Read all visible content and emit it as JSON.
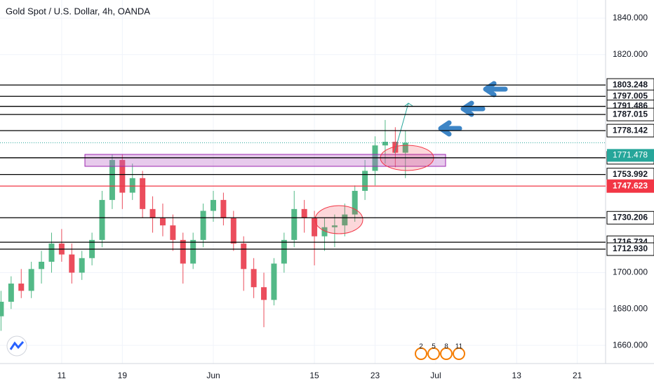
{
  "chart_data": {
    "type": "candlestick",
    "title": "Gold Spot / U.S. Dollar, 4h, OANDA",
    "x": [
      -6,
      -5,
      -4,
      -3,
      -2,
      -1,
      0,
      1,
      2,
      3,
      4,
      5,
      6,
      7,
      8,
      9,
      10,
      11,
      12,
      13,
      14,
      15,
      16,
      17,
      18,
      19,
      20,
      21,
      22,
      23,
      24,
      25,
      26,
      27,
      28,
      29,
      30,
      31,
      32,
      33,
      34
    ],
    "open": [
      1676,
      1684,
      1694,
      1690,
      1702,
      1706,
      1716,
      1710,
      1700,
      1708,
      1718,
      1740,
      1762,
      1744,
      1752,
      1735,
      1730,
      1726,
      1718,
      1705,
      1718,
      1734,
      1740,
      1730,
      1716,
      1702,
      1692,
      1685,
      1705,
      1718,
      1735,
      1730,
      1720,
      1725,
      1726,
      1732,
      1745,
      1756,
      1770,
      1772,
      1766
    ],
    "high": [
      1690,
      1698,
      1702,
      1706,
      1712,
      1722,
      1724,
      1716,
      1712,
      1722,
      1745,
      1765,
      1765,
      1760,
      1756,
      1742,
      1738,
      1732,
      1722,
      1722,
      1738,
      1745,
      1744,
      1734,
      1720,
      1708,
      1700,
      1708,
      1722,
      1745,
      1740,
      1734,
      1730,
      1732,
      1738,
      1748,
      1762,
      1775,
      1784,
      1780,
      1778
    ],
    "low": [
      1668,
      1680,
      1686,
      1686,
      1694,
      1700,
      1706,
      1694,
      1696,
      1704,
      1714,
      1735,
      1735,
      1740,
      1730,
      1722,
      1720,
      1712,
      1694,
      1702,
      1714,
      1728,
      1726,
      1712,
      1690,
      1686,
      1670,
      1682,
      1700,
      1714,
      1722,
      1704,
      1712,
      1714,
      1720,
      1728,
      1740,
      1748,
      1760,
      1758,
      1752
    ],
    "close": [
      1684,
      1694,
      1690,
      1702,
      1706,
      1716,
      1710,
      1700,
      1708,
      1718,
      1740,
      1762,
      1744,
      1752,
      1735,
      1730,
      1726,
      1718,
      1705,
      1718,
      1734,
      1740,
      1730,
      1716,
      1702,
      1692,
      1685,
      1705,
      1718,
      1735,
      1730,
      1720,
      1725,
      1726,
      1732,
      1745,
      1756,
      1770,
      1772,
      1766,
      1771.478
    ],
    "up_color": "#53b987",
    "down_color": "#eb4d5c",
    "xlim": [
      -6.1,
      53.8
    ],
    "xticks": [
      {
        "value": 0,
        "label": "11"
      },
      {
        "value": 6,
        "label": "19"
      },
      {
        "value": 15,
        "label": "Jun"
      },
      {
        "value": 25,
        "label": "15"
      },
      {
        "value": 31,
        "label": "23"
      },
      {
        "value": 37,
        "label": "Jul"
      },
      {
        "value": 45,
        "label": "13"
      },
      {
        "value": 51,
        "label": "21"
      }
    ],
    "ylim": [
      1650,
      1850
    ],
    "yticks": [
      {
        "value": 1660,
        "label": "1660.000"
      },
      {
        "value": 1680,
        "label": "1680.000"
      },
      {
        "value": 1700,
        "label": "1700.000"
      },
      {
        "value": 1820,
        "label": "1820.000"
      },
      {
        "value": 1840,
        "label": "1840.000"
      }
    ],
    "levels": [
      {
        "value": 1803.248,
        "color": "#000000"
      },
      {
        "value": 1797.005,
        "color": "#000000"
      },
      {
        "value": 1791.486,
        "color": "#000000"
      },
      {
        "value": 1787.015,
        "color": "#000000"
      },
      {
        "value": 1778.142,
        "color": "#000000"
      },
      {
        "value": 1763.199,
        "color": "#000000"
      },
      {
        "value": 1753.992,
        "color": "#000000"
      },
      {
        "value": 1747.623,
        "color": "#f23645"
      },
      {
        "value": 1730.206,
        "color": "#000000"
      },
      {
        "value": 1716.734,
        "color": "#000000"
      },
      {
        "value": 1712.93,
        "label": "1712.930",
        "color": "#000000"
      }
    ],
    "last_price": 1771.478,
    "last_price_color": "#26a69a",
    "event_labels": [
      "2",
      "5",
      "8",
      "11"
    ]
  }
}
